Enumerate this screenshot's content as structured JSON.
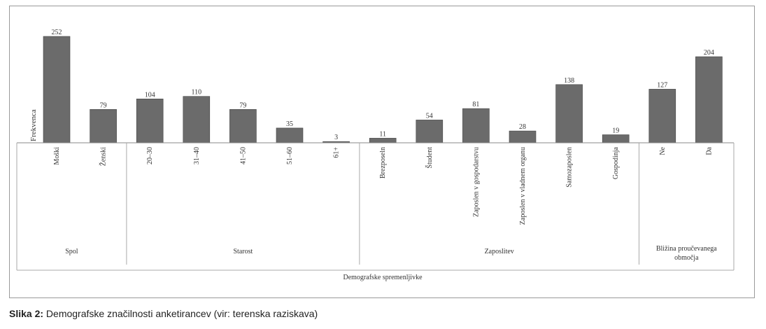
{
  "caption": {
    "label": "Slika 2:",
    "text": "Demografske značilnosti anketirancev (vir: terenska raziskava)"
  },
  "chart_data": {
    "type": "bar",
    "title": "",
    "ylabel": "Frekvenca",
    "xlabel": "Demografske spremenljivke",
    "ylim": [
      0,
      252
    ],
    "grid": false,
    "bar_color": "#6b6b6b",
    "categories": [
      "Moški",
      "Ženski",
      "20–30",
      "31–40",
      "41–50",
      "51–60",
      "61+",
      "Brezposeln",
      "Študent",
      "Zaposlen v gospodarstvu",
      "Zaposlen v vladnem organu",
      "Samozaposlen",
      "Gospodinja",
      "Ne",
      "Da"
    ],
    "values": [
      252,
      79,
      104,
      110,
      79,
      35,
      3,
      11,
      54,
      81,
      28,
      138,
      19,
      127,
      204
    ],
    "groups": [
      {
        "name": "Spol",
        "start": 0,
        "count": 2
      },
      {
        "name": "Starost",
        "start": 2,
        "count": 5
      },
      {
        "name": "Zaposlitev",
        "start": 7,
        "count": 6
      },
      {
        "name": "Bližina proučevanega območja",
        "start": 13,
        "count": 2
      }
    ]
  }
}
